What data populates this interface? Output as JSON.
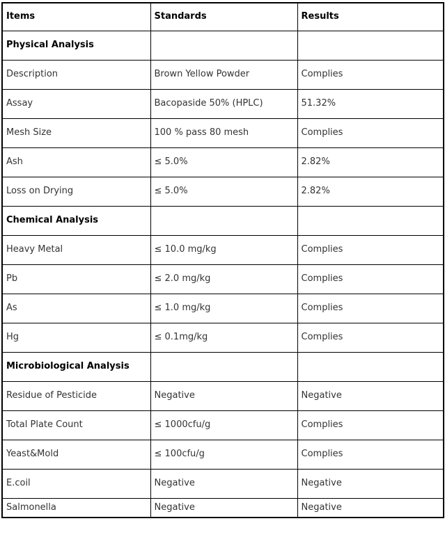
{
  "table": {
    "columns": [
      "Items",
      "Standards",
      "Results"
    ],
    "rows": [
      {
        "type": "section",
        "items": "Physical Analysis",
        "standards": "",
        "results": ""
      },
      {
        "type": "data",
        "items": "Description",
        "standards": "Brown Yellow Powder",
        "results": "Complies"
      },
      {
        "type": "data",
        "items": "Assay",
        "standards": "Bacopaside 50% (HPLC)",
        "results": "51.32%"
      },
      {
        "type": "data",
        "items": "Mesh Size",
        "standards": "100 % pass 80 mesh",
        "results": "Complies"
      },
      {
        "type": "data",
        "items": "Ash",
        "standards": "≤ 5.0%",
        "results": "2.82%"
      },
      {
        "type": "data",
        "items": "Loss on Drying",
        "standards": "≤ 5.0%",
        "results": "2.82%"
      },
      {
        "type": "section",
        "items": "Chemical Analysis",
        "standards": "",
        "results": ""
      },
      {
        "type": "data",
        "items": "Heavy Metal",
        "standards": "≤ 10.0 mg/kg",
        "results": "Complies"
      },
      {
        "type": "data",
        "items": "Pb",
        "standards": "≤ 2.0 mg/kg",
        "results": "Complies"
      },
      {
        "type": "data",
        "items": "As",
        "standards": "≤ 1.0 mg/kg",
        "results": "Complies"
      },
      {
        "type": "data",
        "items": "Hg",
        "standards": "≤ 0.1mg/kg",
        "results": "Complies"
      },
      {
        "type": "section",
        "items": "Microbiological Analysis",
        "standards": "",
        "results": ""
      },
      {
        "type": "data",
        "items": "Residue of Pesticide",
        "standards": "Negative",
        "results": "Negative"
      },
      {
        "type": "data",
        "items": "Total Plate Count",
        "standards": "≤ 1000cfu/g",
        "results": "Complies"
      },
      {
        "type": "data",
        "items": "Yeast&Mold",
        "standards": "≤ 100cfu/g",
        "results": "Complies"
      },
      {
        "type": "data",
        "items": "E.coil",
        "standards": "Negative",
        "results": "Negative"
      },
      {
        "type": "data",
        "items": "Salmonella",
        "standards": "Negative",
        "results": "Negative"
      }
    ],
    "colors": {
      "border": "#000000",
      "text": "#333333",
      "heading_text": "#000000",
      "background": "#ffffff"
    }
  }
}
